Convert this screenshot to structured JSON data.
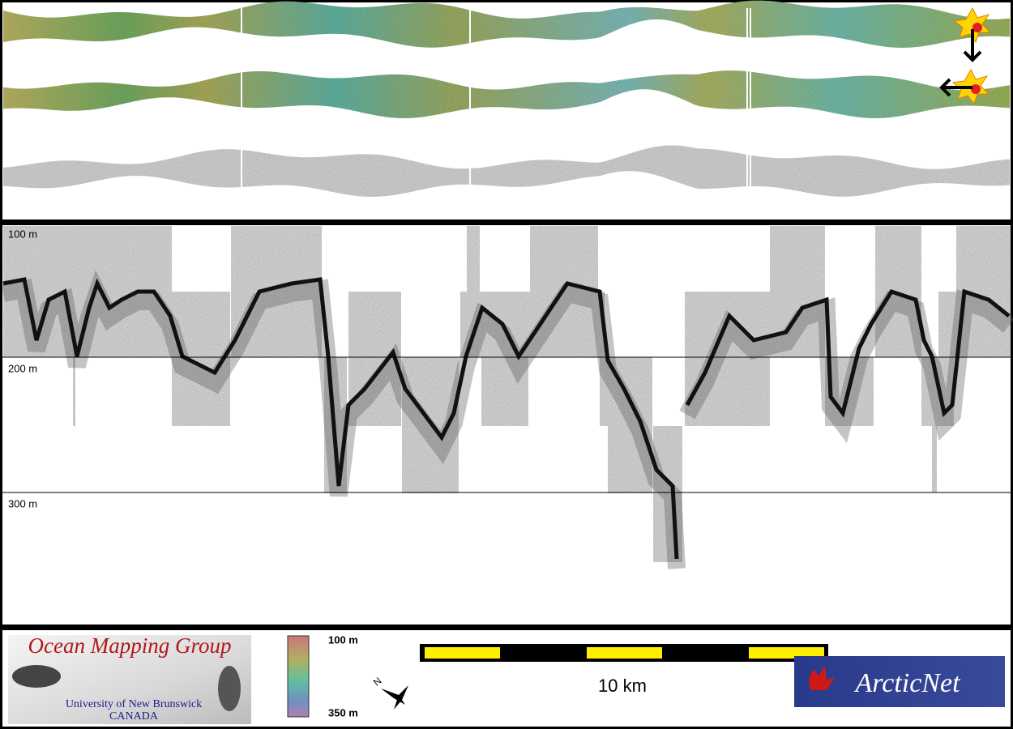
{
  "profile": {
    "depth_labels": [
      "100 m",
      "200 m",
      "300 m"
    ]
  },
  "footer": {
    "logo": {
      "title": "Ocean Mapping Group",
      "university": "University of New Brunswick",
      "country": "CANADA"
    },
    "color_scale": {
      "top": "100 m",
      "bottom": "350 m"
    },
    "compass": "N",
    "scale_bar": "10 km",
    "partner": "ArcticNet"
  }
}
